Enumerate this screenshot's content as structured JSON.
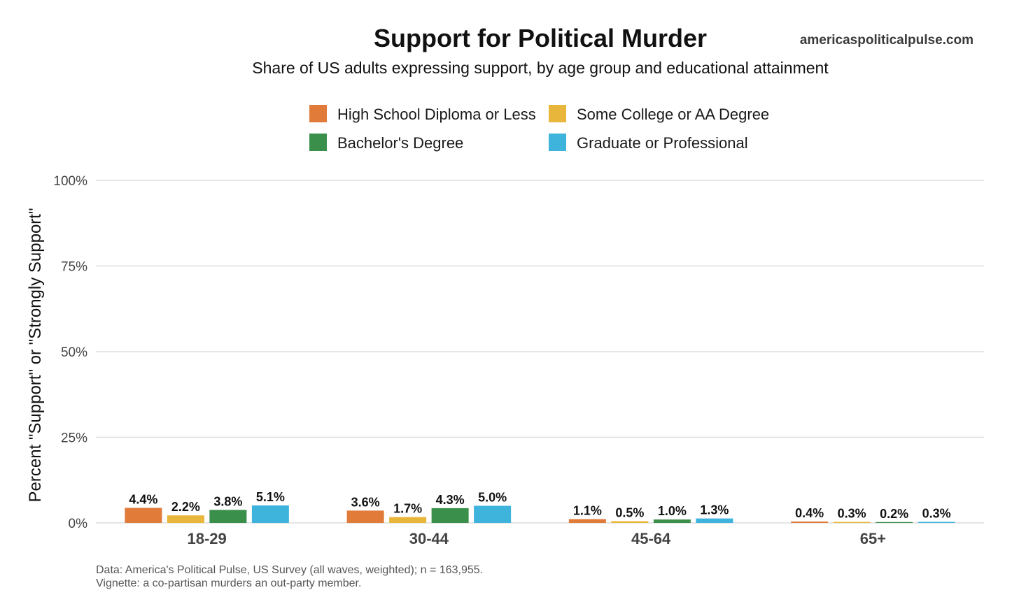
{
  "chart_data": {
    "type": "bar",
    "title": "Support for Political Murder",
    "subtitle": "Share of US adults expressing support, by age group and educational attainment",
    "source_label": "americaspoliticalpulse.com",
    "ylabel": "Percent \"Support\" or \"Strongly Support\"",
    "xlabel": "",
    "ylim": [
      0,
      100
    ],
    "yticks": [
      {
        "value": 0,
        "label": "0%"
      },
      {
        "value": 25,
        "label": "25%"
      },
      {
        "value": 50,
        "label": "50%"
      },
      {
        "value": 75,
        "label": "75%"
      },
      {
        "value": 100,
        "label": "100%"
      }
    ],
    "grid": true,
    "legend_position": "top",
    "categories": [
      "18-29",
      "30-44",
      "45-64",
      "65+"
    ],
    "series": [
      {
        "name": "High School Diploma or Less",
        "color": "#E07B39",
        "values": [
          4.4,
          3.6,
          1.1,
          0.4
        ],
        "labels": [
          "4.4%",
          "3.6%",
          "1.1%",
          "0.4%"
        ]
      },
      {
        "name": "Some College or AA Degree",
        "color": "#E8B63A",
        "values": [
          2.2,
          1.7,
          0.5,
          0.3
        ],
        "labels": [
          "2.2%",
          "1.7%",
          "0.5%",
          "0.3%"
        ]
      },
      {
        "name": "Bachelor's Degree",
        "color": "#3A8F4A",
        "values": [
          3.8,
          4.3,
          1.0,
          0.2
        ],
        "labels": [
          "3.8%",
          "4.3%",
          "1.0%",
          "0.2%"
        ]
      },
      {
        "name": "Graduate or Professional",
        "color": "#3EB3DB",
        "values": [
          5.1,
          5.0,
          1.3,
          0.3
        ],
        "labels": [
          "5.1%",
          "5.0%",
          "1.3%",
          "0.3%"
        ]
      }
    ],
    "caption": [
      "Data: America's Political Pulse, US Survey (all waves, weighted); n = 163,955.",
      "Vignette: a co-partisan murders an out-party member."
    ]
  }
}
